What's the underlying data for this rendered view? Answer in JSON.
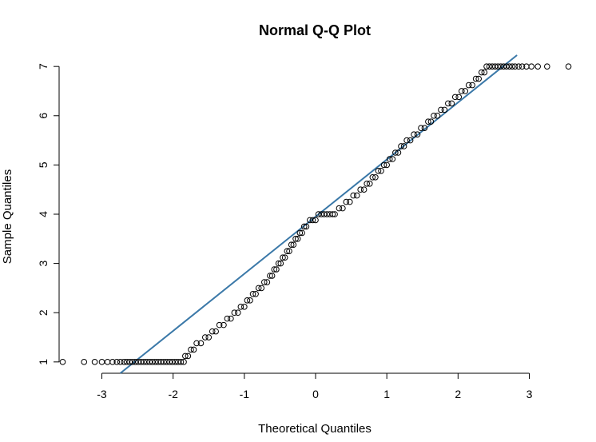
{
  "chart_data": {
    "type": "scatter",
    "title": "Normal Q-Q Plot",
    "xlabel": "Theoretical Quantiles",
    "ylabel": "Sample Quantiles",
    "xlim": [
      -3.6,
      3.6
    ],
    "ylim": [
      0.77,
      7.23
    ],
    "x_ticks": [
      -3,
      -2,
      -1,
      0,
      1,
      2,
      3
    ],
    "y_ticks": [
      1,
      2,
      3,
      4,
      5,
      6,
      7
    ],
    "grid": false,
    "legend": "none",
    "point_style": "open-circle",
    "point_color": "#000000",
    "reference_line": {
      "intercept": 3.95,
      "slope": 1.16,
      "color": "#3a78a8"
    },
    "points": [
      [
        -3.55,
        1
      ],
      [
        -3.25,
        1
      ],
      [
        -3.1,
        1
      ],
      [
        -3.0,
        1
      ],
      [
        -2.92,
        1
      ],
      [
        -2.85,
        1
      ],
      [
        -2.79,
        1
      ],
      [
        -2.74,
        1
      ],
      [
        -2.69,
        1
      ],
      [
        -2.65,
        1
      ],
      [
        -2.61,
        1
      ],
      [
        -2.57,
        1
      ],
      [
        -2.53,
        1
      ],
      [
        -2.49,
        1
      ],
      [
        -2.45,
        1
      ],
      [
        -2.41,
        1
      ],
      [
        -2.37,
        1
      ],
      [
        -2.33,
        1
      ],
      [
        -2.29,
        1
      ],
      [
        -2.25,
        1
      ],
      [
        -2.21,
        1
      ],
      [
        -2.17,
        1
      ],
      [
        -2.13,
        1
      ],
      [
        -2.09,
        1
      ],
      [
        -2.05,
        1
      ],
      [
        -2.01,
        1
      ],
      [
        -1.97,
        1
      ],
      [
        -1.93,
        1
      ],
      [
        -1.89,
        1
      ],
      [
        -1.85,
        1
      ],
      [
        -1.83,
        1.12
      ],
      [
        -1.79,
        1.12
      ],
      [
        -1.75,
        1.25
      ],
      [
        -1.71,
        1.25
      ],
      [
        -1.67,
        1.38
      ],
      [
        -1.61,
        1.38
      ],
      [
        -1.55,
        1.5
      ],
      [
        -1.5,
        1.5
      ],
      [
        -1.45,
        1.62
      ],
      [
        -1.4,
        1.62
      ],
      [
        -1.35,
        1.75
      ],
      [
        -1.29,
        1.75
      ],
      [
        -1.24,
        1.88
      ],
      [
        -1.19,
        1.88
      ],
      [
        -1.14,
        2.0
      ],
      [
        -1.09,
        2.0
      ],
      [
        -1.05,
        2.12
      ],
      [
        -1.0,
        2.12
      ],
      [
        -0.96,
        2.25
      ],
      [
        -0.92,
        2.25
      ],
      [
        -0.88,
        2.38
      ],
      [
        -0.84,
        2.38
      ],
      [
        -0.8,
        2.5
      ],
      [
        -0.76,
        2.5
      ],
      [
        -0.72,
        2.62
      ],
      [
        -0.68,
        2.62
      ],
      [
        -0.64,
        2.75
      ],
      [
        -0.61,
        2.75
      ],
      [
        -0.58,
        2.88
      ],
      [
        -0.55,
        2.88
      ],
      [
        -0.52,
        3.0
      ],
      [
        -0.49,
        3.0
      ],
      [
        -0.46,
        3.12
      ],
      [
        -0.43,
        3.12
      ],
      [
        -0.4,
        3.25
      ],
      [
        -0.37,
        3.25
      ],
      [
        -0.34,
        3.38
      ],
      [
        -0.31,
        3.38
      ],
      [
        -0.28,
        3.5
      ],
      [
        -0.25,
        3.5
      ],
      [
        -0.22,
        3.62
      ],
      [
        -0.19,
        3.62
      ],
      [
        -0.16,
        3.75
      ],
      [
        -0.13,
        3.75
      ],
      [
        -0.08,
        3.88
      ],
      [
        -0.04,
        3.88
      ],
      [
        0.0,
        3.88
      ],
      [
        0.04,
        4.0
      ],
      [
        0.08,
        4.0
      ],
      [
        0.12,
        4.0
      ],
      [
        0.16,
        4.0
      ],
      [
        0.2,
        4.0
      ],
      [
        0.24,
        4.0
      ],
      [
        0.27,
        4.0
      ],
      [
        0.33,
        4.12
      ],
      [
        0.38,
        4.12
      ],
      [
        0.43,
        4.25
      ],
      [
        0.48,
        4.25
      ],
      [
        0.53,
        4.38
      ],
      [
        0.58,
        4.38
      ],
      [
        0.63,
        4.5
      ],
      [
        0.68,
        4.5
      ],
      [
        0.72,
        4.62
      ],
      [
        0.76,
        4.62
      ],
      [
        0.8,
        4.75
      ],
      [
        0.84,
        4.75
      ],
      [
        0.88,
        4.88
      ],
      [
        0.92,
        4.88
      ],
      [
        0.96,
        5.0
      ],
      [
        1.0,
        5.0
      ],
      [
        1.04,
        5.12
      ],
      [
        1.08,
        5.12
      ],
      [
        1.12,
        5.25
      ],
      [
        1.16,
        5.25
      ],
      [
        1.2,
        5.38
      ],
      [
        1.24,
        5.38
      ],
      [
        1.28,
        5.5
      ],
      [
        1.33,
        5.5
      ],
      [
        1.38,
        5.62
      ],
      [
        1.43,
        5.62
      ],
      [
        1.48,
        5.75
      ],
      [
        1.53,
        5.75
      ],
      [
        1.58,
        5.88
      ],
      [
        1.62,
        5.88
      ],
      [
        1.66,
        6.0
      ],
      [
        1.71,
        6.0
      ],
      [
        1.76,
        6.12
      ],
      [
        1.81,
        6.12
      ],
      [
        1.86,
        6.25
      ],
      [
        1.91,
        6.25
      ],
      [
        1.96,
        6.38
      ],
      [
        2.01,
        6.38
      ],
      [
        2.05,
        6.5
      ],
      [
        2.1,
        6.5
      ],
      [
        2.15,
        6.62
      ],
      [
        2.2,
        6.62
      ],
      [
        2.25,
        6.75
      ],
      [
        2.29,
        6.75
      ],
      [
        2.33,
        6.88
      ],
      [
        2.37,
        6.88
      ],
      [
        2.4,
        7
      ],
      [
        2.44,
        7
      ],
      [
        2.48,
        7
      ],
      [
        2.52,
        7
      ],
      [
        2.56,
        7
      ],
      [
        2.6,
        7
      ],
      [
        2.64,
        7
      ],
      [
        2.68,
        7
      ],
      [
        2.72,
        7
      ],
      [
        2.76,
        7
      ],
      [
        2.8,
        7
      ],
      [
        2.85,
        7
      ],
      [
        2.9,
        7
      ],
      [
        2.96,
        7
      ],
      [
        3.03,
        7
      ],
      [
        3.12,
        7
      ],
      [
        3.25,
        7
      ],
      [
        3.55,
        7
      ]
    ]
  }
}
